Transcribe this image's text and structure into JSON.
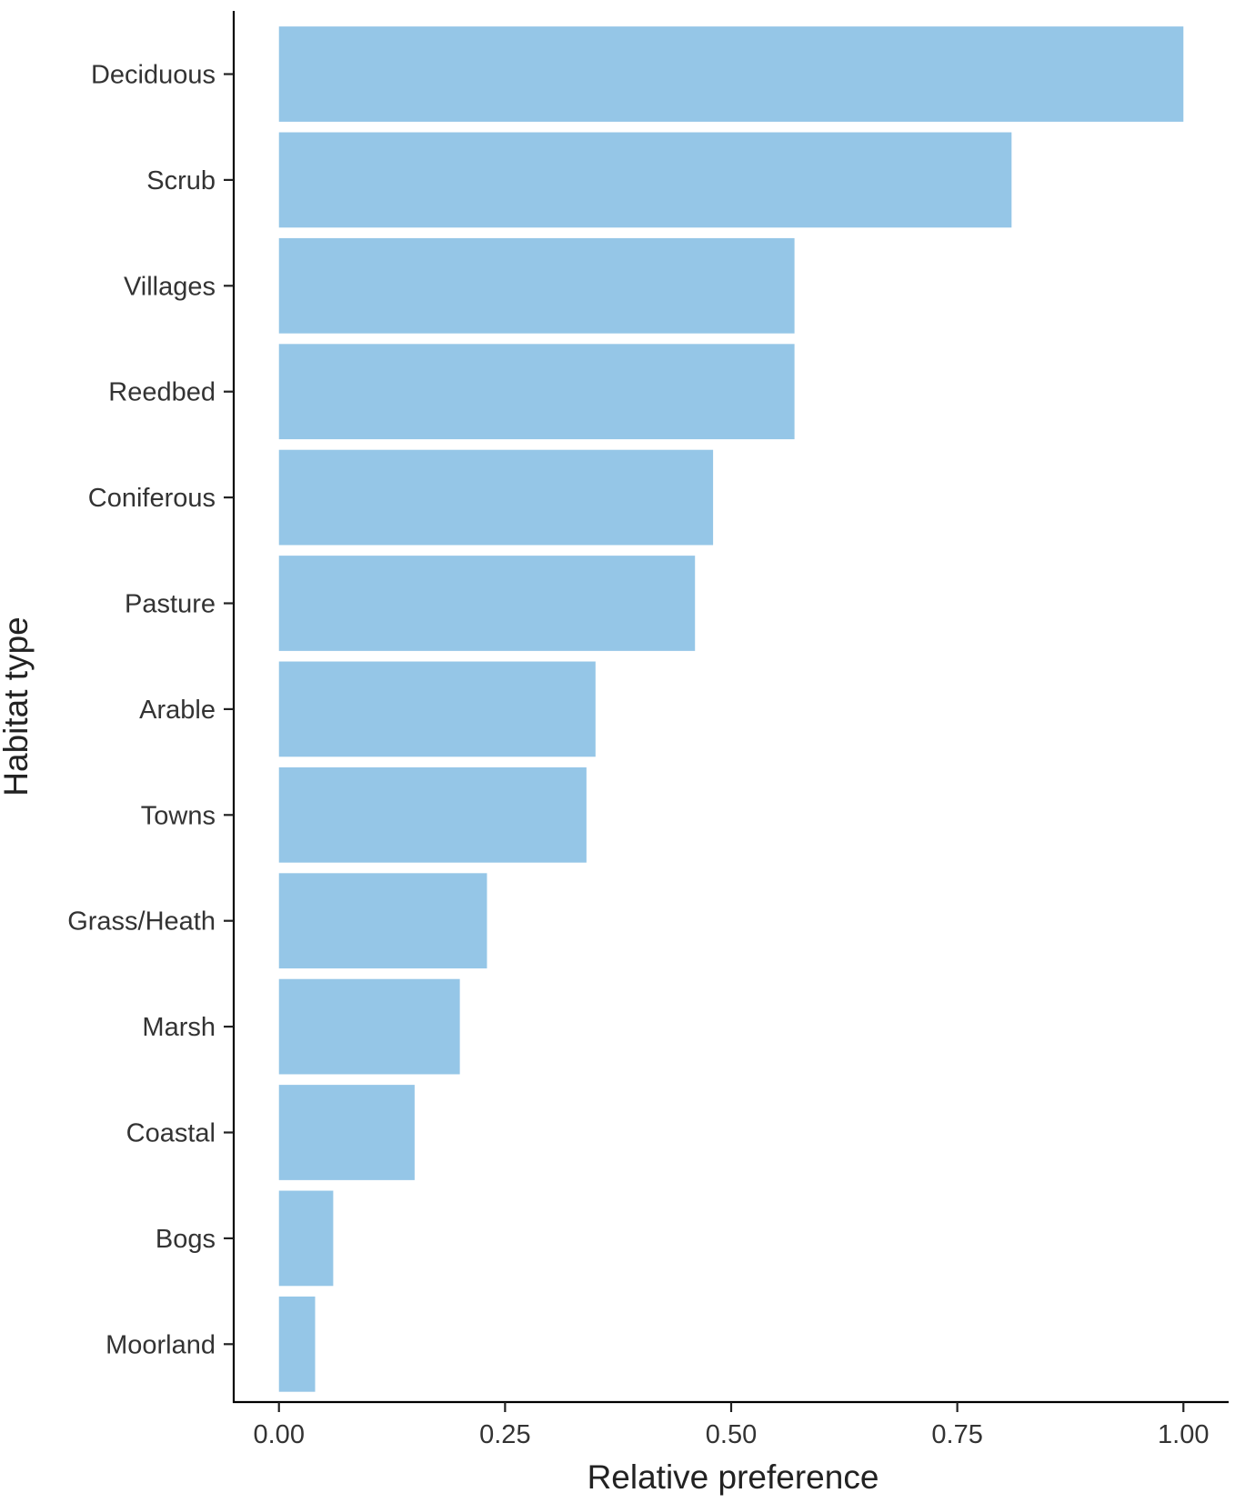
{
  "chart_data": {
    "type": "bar",
    "orientation": "horizontal",
    "categories": [
      "Deciduous",
      "Scrub",
      "Villages",
      "Reedbed",
      "Coniferous",
      "Pasture",
      "Arable",
      "Towns",
      "Grass/Heath",
      "Marsh",
      "Coastal",
      "Bogs",
      "Moorland"
    ],
    "values": [
      1.0,
      0.81,
      0.57,
      0.57,
      0.48,
      0.46,
      0.35,
      0.34,
      0.23,
      0.2,
      0.15,
      0.06,
      0.04
    ],
    "xlabel": "Relative preference",
    "ylabel": "Habitat type",
    "xlim": [
      -0.05,
      1.05
    ],
    "xticks": [
      0,
      0.25,
      0.5,
      0.75,
      1.0
    ],
    "xtick_labels": [
      "0.00",
      "0.25",
      "0.50",
      "0.75",
      "1.00"
    ],
    "bar_color": "#95C6E7",
    "grid": false,
    "legend": "none"
  }
}
